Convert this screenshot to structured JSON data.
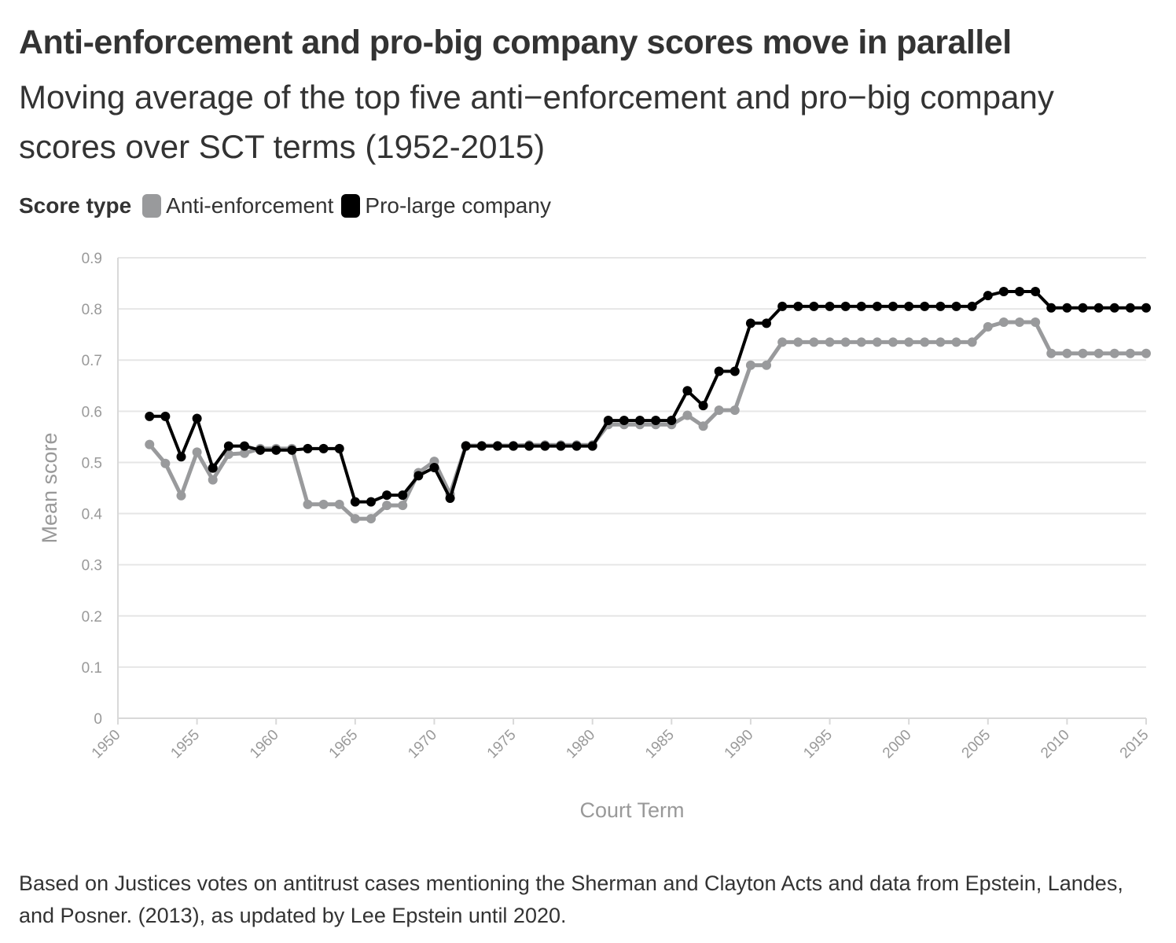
{
  "title": "Anti-enforcement and pro-big company scores move in parallel",
  "subtitle": "Moving average of the top five anti−enforcement and pro−big company scores over SCT terms (1952-2015)",
  "legend": {
    "title": "Score type",
    "items": [
      {
        "label": "Anti-enforcement",
        "color": "#999a9c"
      },
      {
        "label": "Pro-large company",
        "color": "#000000"
      }
    ]
  },
  "footnote": "Based on Justices votes on antitrust cases mentioning the Sherman and Clayton Acts and data from Epstein, Landes, and Posner. (2013), as updated by Lee Epstein until 2020.",
  "chart_data": {
    "type": "line",
    "xlabel": "Court Term",
    "ylabel": "Mean score",
    "xlim": [
      1950,
      2015
    ],
    "ylim": [
      0,
      0.9
    ],
    "xticks": [
      "1950",
      "1955",
      "1960",
      "1965",
      "1970",
      "1975",
      "1980",
      "1985",
      "1990",
      "1995",
      "2000",
      "2005",
      "2010",
      "2015"
    ],
    "yticks": [
      "0",
      "0.1",
      "0.2",
      "0.3",
      "0.4",
      "0.5",
      "0.6",
      "0.7",
      "0.8",
      "0.9"
    ],
    "grid": true,
    "legend_position": "top-left",
    "x": [
      1952,
      1953,
      1954,
      1955,
      1956,
      1957,
      1958,
      1959,
      1960,
      1961,
      1962,
      1963,
      1964,
      1965,
      1966,
      1967,
      1968,
      1969,
      1970,
      1971,
      1972,
      1973,
      1974,
      1975,
      1976,
      1977,
      1978,
      1979,
      1980,
      1981,
      1982,
      1983,
      1984,
      1985,
      1986,
      1987,
      1988,
      1989,
      1990,
      1991,
      1992,
      1993,
      1994,
      1995,
      1996,
      1997,
      1998,
      1999,
      2000,
      2001,
      2002,
      2003,
      2004,
      2005,
      2006,
      2007,
      2008,
      2009,
      2010,
      2011,
      2012,
      2013,
      2014,
      2015
    ],
    "series": [
      {
        "name": "Anti-enforcement",
        "color": "#999a9c",
        "values": [
          0.535,
          0.498,
          0.435,
          0.52,
          0.466,
          0.516,
          0.518,
          0.527,
          0.527,
          0.527,
          0.418,
          0.418,
          0.418,
          0.39,
          0.39,
          0.416,
          0.416,
          0.48,
          0.502,
          0.438,
          0.533,
          0.533,
          0.533,
          0.533,
          0.534,
          0.534,
          0.534,
          0.534,
          0.534,
          0.574,
          0.574,
          0.574,
          0.574,
          0.574,
          0.592,
          0.571,
          0.602,
          0.602,
          0.69,
          0.69,
          0.735,
          0.735,
          0.735,
          0.735,
          0.735,
          0.735,
          0.735,
          0.735,
          0.735,
          0.735,
          0.735,
          0.735,
          0.735,
          0.765,
          0.774,
          0.774,
          0.774,
          0.713,
          0.713,
          0.713,
          0.713,
          0.713,
          0.713,
          0.713
        ]
      },
      {
        "name": "Pro-large company",
        "color": "#000000",
        "values": [
          0.59,
          0.59,
          0.511,
          0.586,
          0.489,
          0.532,
          0.532,
          0.524,
          0.524,
          0.524,
          0.527,
          0.527,
          0.527,
          0.423,
          0.423,
          0.436,
          0.436,
          0.474,
          0.49,
          0.43,
          0.532,
          0.532,
          0.532,
          0.532,
          0.532,
          0.532,
          0.532,
          0.532,
          0.532,
          0.582,
          0.582,
          0.582,
          0.582,
          0.582,
          0.64,
          0.611,
          0.678,
          0.678,
          0.772,
          0.772,
          0.805,
          0.805,
          0.805,
          0.805,
          0.805,
          0.805,
          0.805,
          0.805,
          0.805,
          0.805,
          0.805,
          0.805,
          0.805,
          0.826,
          0.834,
          0.834,
          0.834,
          0.802,
          0.802,
          0.802,
          0.802,
          0.802,
          0.802,
          0.802
        ]
      }
    ]
  }
}
